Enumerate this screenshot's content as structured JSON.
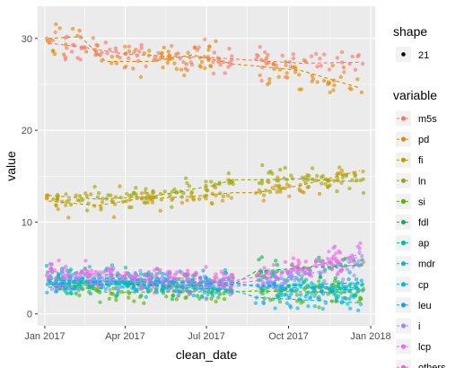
{
  "chart_data": {
    "type": "scatter",
    "xlabel": "clean_date",
    "ylabel": "value",
    "x_ticks": [
      "Jan 2017",
      "Apr 2017",
      "Jul 2017",
      "Oct 2017",
      "Jan 2018"
    ],
    "y_ticks": [
      0,
      10,
      20,
      30
    ],
    "xlim": [
      "2016-12-24",
      "2018-01-06"
    ],
    "ylim": [
      -1.3,
      33.5
    ],
    "grid": true,
    "legend_position": "right",
    "legend_shape": {
      "title": "shape",
      "entries": [
        "21"
      ]
    },
    "legend_variable": {
      "title": "variable"
    },
    "series": [
      {
        "name": "m5s",
        "color": "#F8766D",
        "trend": [
          [
            "2017-01-05",
            29.5
          ],
          [
            "2017-02-15",
            29.0
          ],
          [
            "2017-04-01",
            28.3
          ],
          [
            "2017-06-01",
            28.0
          ],
          [
            "2017-07-10",
            27.9
          ],
          [
            "2017-08-25",
            27.6
          ],
          [
            "2017-10-15",
            27.3
          ],
          [
            "2017-12-20",
            27.4
          ]
        ]
      },
      {
        "name": "pd",
        "color": "#E38900",
        "trend": [
          [
            "2017-01-05",
            30.0
          ],
          [
            "2017-02-10",
            30.2
          ],
          [
            "2017-03-10",
            27.5
          ],
          [
            "2017-05-01",
            27.5
          ],
          [
            "2017-06-15",
            28.2
          ],
          [
            "2017-07-31",
            27.2
          ],
          [
            "2017-08-25",
            27.0
          ],
          [
            "2017-10-15",
            26.5
          ],
          [
            "2017-12-20",
            24.6
          ]
        ]
      },
      {
        "name": "fi",
        "color": "#C49A00",
        "trend": [
          [
            "2017-01-05",
            12.3
          ],
          [
            "2017-03-01",
            11.8
          ],
          [
            "2017-04-15",
            12.5
          ],
          [
            "2017-06-15",
            12.8
          ],
          [
            "2017-07-31",
            13.2
          ],
          [
            "2017-08-25",
            13.2
          ],
          [
            "2017-10-15",
            14.0
          ],
          [
            "2017-12-20",
            15.6
          ]
        ]
      },
      {
        "name": "ln",
        "color": "#99A800",
        "trend": [
          [
            "2017-01-05",
            12.9
          ],
          [
            "2017-03-01",
            12.5
          ],
          [
            "2017-05-01",
            12.8
          ],
          [
            "2017-07-10",
            14.0
          ],
          [
            "2017-07-31",
            14.6
          ],
          [
            "2017-08-25",
            14.6
          ],
          [
            "2017-10-15",
            14.7
          ],
          [
            "2017-12-20",
            14.4
          ]
        ]
      },
      {
        "name": "si",
        "color": "#53B400",
        "trend": [
          [
            "2017-01-05",
            3.6
          ],
          [
            "2017-03-15",
            2.3
          ],
          [
            "2017-05-01",
            2.4
          ],
          [
            "2017-07-31",
            2.4
          ],
          [
            "2017-08-25",
            2.5
          ],
          [
            "2017-12-20",
            2.3
          ]
        ]
      },
      {
        "name": "fdl",
        "color": "#00BC56",
        "trend": [
          [
            "2017-01-05",
            2.9
          ],
          [
            "2017-04-01",
            3.3
          ],
          [
            "2017-06-01",
            3.0
          ],
          [
            "2017-07-31",
            3.2
          ],
          [
            "2017-08-25",
            4.6
          ],
          [
            "2017-10-15",
            5.0
          ],
          [
            "2017-12-20",
            5.3
          ]
        ]
      },
      {
        "name": "ap",
        "color": "#00C094",
        "trend": [
          [
            "2017-01-05",
            3.7
          ],
          [
            "2017-04-01",
            3.5
          ],
          [
            "2017-07-31",
            3.0
          ],
          [
            "2017-08-25",
            3.2
          ],
          [
            "2017-12-20",
            2.8
          ]
        ]
      },
      {
        "name": "mdr",
        "color": "#00BFC4",
        "trend": [
          [
            "2017-01-05",
            4.0
          ],
          [
            "2017-04-01",
            3.8
          ],
          [
            "2017-07-31",
            3.4
          ],
          [
            "2017-08-25",
            3.0
          ],
          [
            "2017-12-20",
            2.6
          ]
        ]
      },
      {
        "name": "cp",
        "color": "#00B6EB",
        "trend": [
          [
            "2017-01-05",
            3.5
          ],
          [
            "2017-04-01",
            3.2
          ],
          [
            "2017-07-31",
            2.6
          ],
          [
            "2017-08-25",
            1.8
          ],
          [
            "2017-12-20",
            1.2
          ]
        ]
      },
      {
        "name": "leu",
        "color": "#06A4FF",
        "trend": [
          [
            "2017-01-05",
            3.2
          ],
          [
            "2017-04-01",
            3.6
          ],
          [
            "2017-07-31",
            3.3
          ],
          [
            "2017-08-25",
            3.0
          ],
          [
            "2017-12-20",
            3.4
          ]
        ]
      },
      {
        "name": "i",
        "color": "#A58AFF",
        "trend": [
          [
            "2017-01-05",
            3.8
          ],
          [
            "2017-04-01",
            3.6
          ],
          [
            "2017-07-31",
            3.0
          ],
          [
            "2017-08-25",
            3.2
          ],
          [
            "2017-12-20",
            5.5
          ]
        ]
      },
      {
        "name": "lcp",
        "color": "#DF70F8",
        "trend": [
          [
            "2017-01-05",
            4.0
          ],
          [
            "2017-04-01",
            3.9
          ],
          [
            "2017-07-31",
            3.3
          ],
          [
            "2017-08-25",
            3.6
          ],
          [
            "2017-12-20",
            6.5
          ]
        ]
      },
      {
        "name": "others",
        "color": "#FB61D7",
        "trend": [
          [
            "2017-01-05",
            4.6
          ],
          [
            "2017-04-01",
            4.2
          ],
          [
            "2017-07-31",
            3.6
          ],
          [
            "2017-08-25",
            4.0
          ],
          [
            "2017-12-20",
            6.2
          ]
        ]
      }
    ]
  }
}
